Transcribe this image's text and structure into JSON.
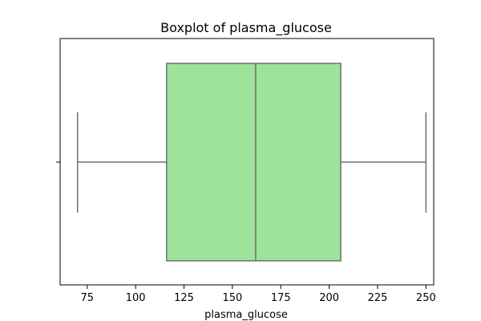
{
  "chart_data": {
    "type": "boxplot",
    "title": "Boxplot of plasma_glucose",
    "xlabel": "plasma_glucose",
    "ylabel": "",
    "orientation": "horizontal",
    "xlim": [
      61,
      254
    ],
    "xticks": [
      75,
      100,
      125,
      150,
      175,
      200,
      225,
      250
    ],
    "xtick_labels": [
      "75",
      "100",
      "125",
      "150",
      "175",
      "200",
      "225",
      "250"
    ],
    "box": {
      "whisker_low": 70,
      "q1": 116,
      "median": 162,
      "q3": 206,
      "whisker_high": 250
    },
    "grid": false,
    "colors": {
      "box_fill": "#9de39b",
      "line": "#707070",
      "axis": "#000000",
      "text": "#000000"
    }
  }
}
